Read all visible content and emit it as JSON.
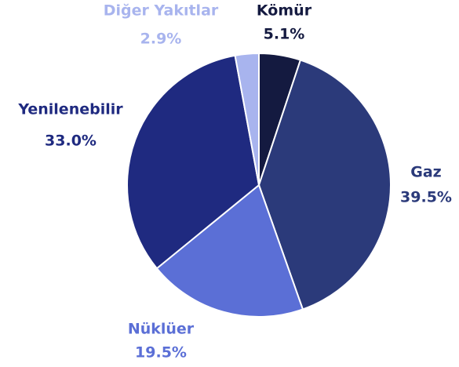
{
  "chart_data": {
    "type": "pie",
    "categories": [
      "Kömür",
      "Gaz",
      "Nüklüer",
      "Yenilenebilir",
      "Diğer Yakıtlar"
    ],
    "values": [
      5.1,
      39.5,
      19.5,
      33.0,
      2.9
    ],
    "value_labels": [
      "5.1%",
      "39.5%",
      "19.5%",
      "33.0%",
      "2.9%"
    ],
    "colors": [
      "#141a40",
      "#2b3a7a",
      "#5b6fd6",
      "#1f2a80",
      "#a8b4ee"
    ]
  }
}
